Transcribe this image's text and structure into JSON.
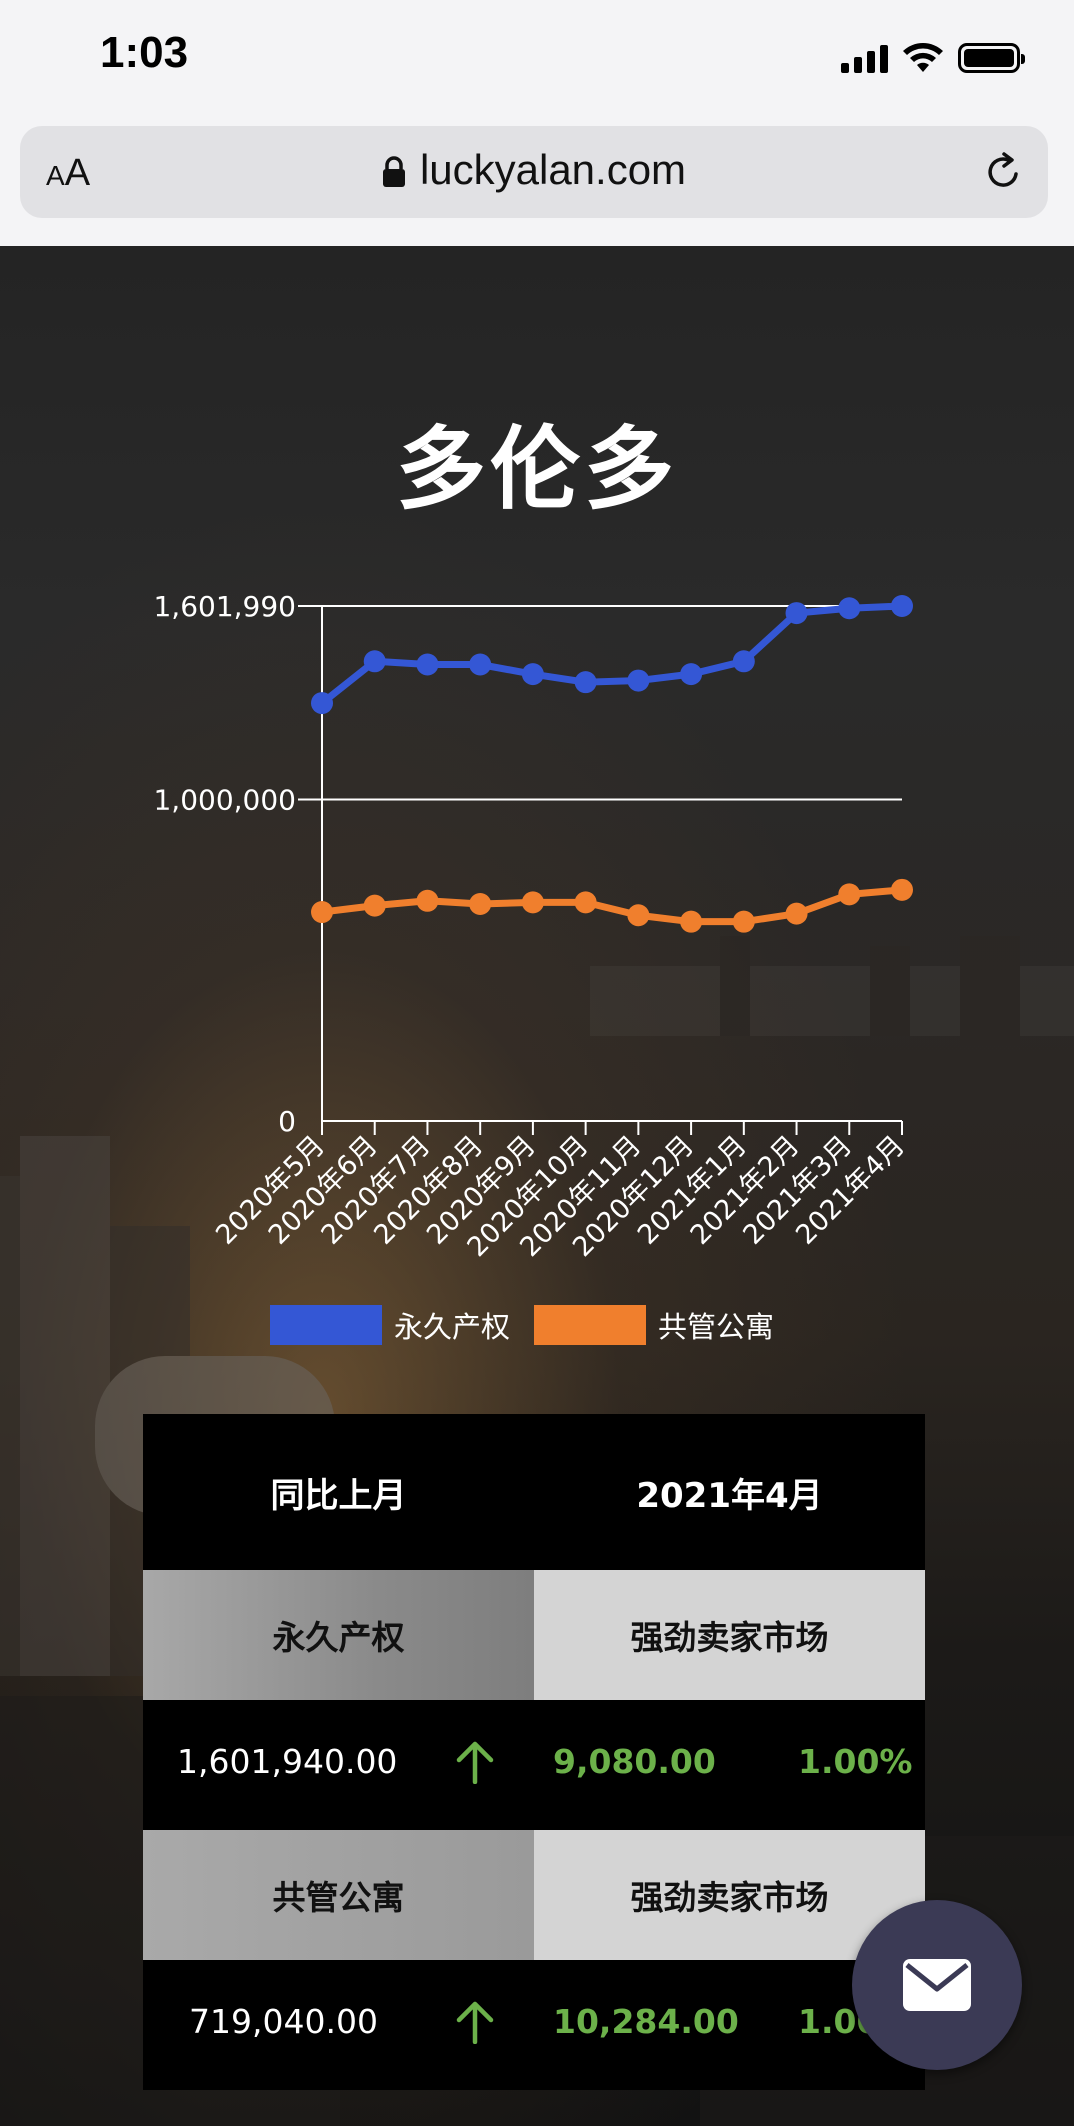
{
  "status_bar": {
    "time": "1:03"
  },
  "browser": {
    "aa_small": "A",
    "aa_big": "A",
    "url": "luckyalan.com",
    "lock_icon": "lock-icon",
    "reload_icon": "reload-icon"
  },
  "page": {
    "title": "多伦多"
  },
  "chart_data": {
    "type": "line",
    "categories": [
      "2020年5月",
      "2020年6月",
      "2020年7月",
      "2020年8月",
      "2020年9月",
      "2020年10月",
      "2020年11月",
      "2020年12月",
      "2021年1月",
      "2021年2月",
      "2021年3月",
      "2021年4月"
    ],
    "y_ticks": [
      {
        "value": 0,
        "label": "0"
      },
      {
        "value": 1000000,
        "label": "1,000,000"
      },
      {
        "value": 1601990,
        "label": "1,601,990"
      }
    ],
    "ylim": [
      0,
      1601990
    ],
    "grid": true,
    "legend_position": "bottom",
    "series": [
      {
        "name": "永久产权",
        "color": "#3457d5",
        "values": [
          1300000,
          1430000,
          1420000,
          1420000,
          1390000,
          1365000,
          1370000,
          1390000,
          1430000,
          1580000,
          1595000,
          1601940
        ]
      },
      {
        "name": "共管公寓",
        "color": "#f07f2d",
        "values": [
          650000,
          670000,
          685000,
          675000,
          680000,
          680000,
          640000,
          620000,
          620000,
          645000,
          705000,
          719040
        ]
      }
    ]
  },
  "table": {
    "header_left": "同比上月",
    "header_right": "2021年4月",
    "rows": [
      {
        "category": "永久产权",
        "status": "强劲卖家市场",
        "price": "1,601,940.00",
        "change": "9,080.00",
        "percent": "1.00%",
        "arrow_icon": "arrow-up-icon"
      },
      {
        "category": "共管公寓",
        "status": "强劲卖家市场",
        "price": "719,040.00",
        "change": "10,284.00",
        "percent": "1.00%",
        "arrow_icon": "arrow-up-icon"
      }
    ]
  },
  "colors": {
    "positive_green": "#6cb14a",
    "mail_button": "#3b3a55"
  },
  "mail_button_icon": "mail-icon"
}
